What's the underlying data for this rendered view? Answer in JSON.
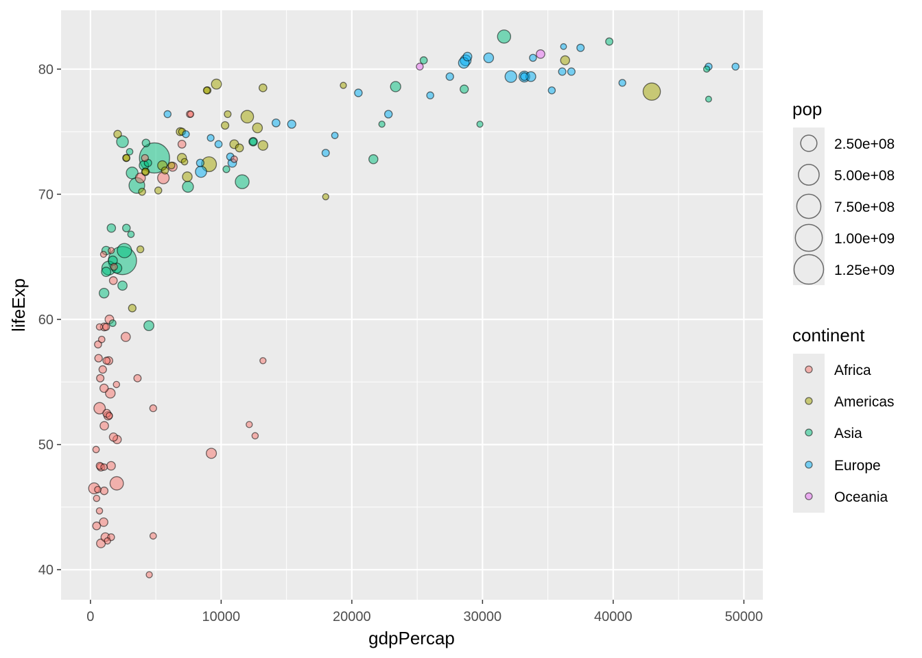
{
  "chart_data": {
    "type": "scatter",
    "title": "",
    "xlabel": "gdpPercap",
    "ylabel": "lifeExp",
    "xlim": [
      -2250,
      51450
    ],
    "ylim": [
      37.6,
      84.7
    ],
    "xticks": [
      0,
      10000,
      20000,
      30000,
      40000,
      50000
    ],
    "xtick_labels": [
      "0",
      "10000",
      "20000",
      "30000",
      "40000",
      "50000"
    ],
    "yticks": [
      40,
      50,
      60,
      70,
      80
    ],
    "ytick_labels": [
      "40",
      "50",
      "60",
      "70",
      "80"
    ],
    "grid": true,
    "colors": {
      "Africa": "#F8766D",
      "Americas": "#A3A500",
      "Asia": "#00BF7D",
      "Europe": "#00B0F6",
      "Oceania": "#E76BF3",
      "panel": "#EBEBEB",
      "grid": "#FFFFFF"
    },
    "size_legend": {
      "title": "pop",
      "values": [
        250000000,
        500000000,
        750000000,
        1000000000,
        1250000000
      ],
      "labels": [
        "2.50e+08",
        "5.00e+08",
        "7.50e+08",
        "1.00e+09",
        "1.25e+09"
      ]
    },
    "color_legend": {
      "title": "continent",
      "entries": [
        "Africa",
        "Americas",
        "Asia",
        "Europe",
        "Oceania"
      ]
    },
    "legend_position": "right",
    "points": [
      {
        "x": 4900,
        "y": 72.9,
        "pop": 1318000000,
        "continent": "Asia"
      },
      {
        "x": 2450,
        "y": 64.7,
        "pop": 1110000000,
        "continent": "Asia"
      },
      {
        "x": 42950,
        "y": 78.2,
        "pop": 301000000,
        "continent": "Americas"
      },
      {
        "x": 3550,
        "y": 70.7,
        "pop": 224000000,
        "continent": "Asia"
      },
      {
        "x": 9070,
        "y": 72.4,
        "pop": 190000000,
        "continent": "Americas"
      },
      {
        "x": 2600,
        "y": 65.5,
        "pop": 169000000,
        "continent": "Asia"
      },
      {
        "x": 1400,
        "y": 64.1,
        "pop": 150000000,
        "continent": "Asia"
      },
      {
        "x": 2010,
        "y": 46.9,
        "pop": 135000000,
        "continent": "Africa"
      },
      {
        "x": 31650,
        "y": 82.6,
        "pop": 127000000,
        "continent": "Asia"
      },
      {
        "x": 12000,
        "y": 76.2,
        "pop": 108000000,
        "continent": "Americas"
      },
      {
        "x": 9250,
        "y": 49.3,
        "pop": 47000000,
        "continent": "Africa"
      },
      {
        "x": 3190,
        "y": 71.7,
        "pop": 85000000,
        "continent": "Asia"
      },
      {
        "x": 32170,
        "y": 79.4,
        "pop": 82000000,
        "continent": "Europe"
      },
      {
        "x": 5580,
        "y": 71.3,
        "pop": 80000000,
        "continent": "Africa"
      },
      {
        "x": 2450,
        "y": 74.2,
        "pop": 85000000,
        "continent": "Asia"
      },
      {
        "x": 8460,
        "y": 71.8,
        "pop": 71000000,
        "continent": "Europe"
      },
      {
        "x": 28710,
        "y": 80.7,
        "pop": 61000000,
        "continent": "Europe"
      },
      {
        "x": 33200,
        "y": 79.4,
        "pop": 60000000,
        "continent": "Europe"
      },
      {
        "x": 28570,
        "y": 80.5,
        "pop": 58000000,
        "continent": "Europe"
      },
      {
        "x": 7460,
        "y": 70.6,
        "pop": 65000000,
        "continent": "Asia"
      },
      {
        "x": 2010,
        "y": 64.1,
        "pop": 47000000,
        "continent": "Asia"
      },
      {
        "x": 700,
        "y": 52.9,
        "pop": 76000000,
        "continent": "Africa"
      },
      {
        "x": 280,
        "y": 46.5,
        "pop": 65000000,
        "continent": "Africa"
      },
      {
        "x": 23350,
        "y": 78.6,
        "pop": 49000000,
        "continent": "Asia"
      },
      {
        "x": 9640,
        "y": 78.8,
        "pop": 44000000,
        "continent": "Americas"
      },
      {
        "x": 30470,
        "y": 80.9,
        "pop": 40000000,
        "continent": "Europe"
      },
      {
        "x": 1520,
        "y": 54.1,
        "pop": 38000000,
        "continent": "Africa"
      },
      {
        "x": 12780,
        "y": 75.3,
        "pop": 40000000,
        "continent": "Americas"
      },
      {
        "x": 11610,
        "y": 71.0,
        "pop": 150000000,
        "continent": "Asia"
      },
      {
        "x": 33700,
        "y": 79.4,
        "pop": 40000000,
        "continent": "Europe"
      },
      {
        "x": 13200,
        "y": 73.9,
        "pop": 38000000,
        "continent": "Americas"
      },
      {
        "x": 7410,
        "y": 71.4,
        "pop": 38000000,
        "continent": "Americas"
      },
      {
        "x": 4470,
        "y": 59.5,
        "pop": 43000000,
        "continent": "Asia"
      },
      {
        "x": 3820,
        "y": 71.3,
        "pop": 43000000,
        "continent": "Africa"
      },
      {
        "x": 1040,
        "y": 62.1,
        "pop": 38000000,
        "continent": "Asia"
      },
      {
        "x": 4090,
        "y": 72.3,
        "pop": 33000000,
        "continent": "Asia"
      },
      {
        "x": 1200,
        "y": 63.8,
        "pop": 32000000,
        "continent": "Asia"
      },
      {
        "x": 5500,
        "y": 72.3,
        "pop": 33000000,
        "continent": "Americas"
      },
      {
        "x": 2700,
        "y": 58.6,
        "pop": 29000000,
        "continent": "Africa"
      },
      {
        "x": 2450,
        "y": 62.7,
        "pop": 30000000,
        "continent": "Asia"
      },
      {
        "x": 1580,
        "y": 48.3,
        "pop": 20000000,
        "continent": "Africa"
      },
      {
        "x": 1450,
        "y": 60.0,
        "pop": 22000000,
        "continent": "Africa"
      },
      {
        "x": 36320,
        "y": 80.7,
        "pop": 27000000,
        "continent": "Americas"
      },
      {
        "x": 21650,
        "y": 72.8,
        "pop": 27000000,
        "continent": "Asia"
      },
      {
        "x": 6290,
        "y": 72.2,
        "pop": 26000000,
        "continent": "Africa"
      },
      {
        "x": 11000,
        "y": 74.0,
        "pop": 23000000,
        "continent": "Americas"
      },
      {
        "x": 1710,
        "y": 64.7,
        "pop": 28000000,
        "continent": "Asia"
      },
      {
        "x": 7000,
        "y": 72.9,
        "pop": 28000000,
        "continent": "Americas"
      },
      {
        "x": 1140,
        "y": 42.6,
        "pop": 22000000,
        "continent": "Africa"
      },
      {
        "x": 800,
        "y": 42.1,
        "pop": 23000000,
        "continent": "Africa"
      },
      {
        "x": 34440,
        "y": 81.2,
        "pop": 20000000,
        "continent": "Oceania"
      },
      {
        "x": 28850,
        "y": 81.0,
        "pop": 22000000,
        "continent": "Europe"
      },
      {
        "x": 1200,
        "y": 65.5,
        "pop": 20000000,
        "continent": "Asia"
      },
      {
        "x": 15400,
        "y": 75.6,
        "pop": 16000000,
        "continent": "Europe"
      },
      {
        "x": 12450,
        "y": 74.2,
        "pop": 20000000,
        "continent": "Asia"
      },
      {
        "x": 10850,
        "y": 72.5,
        "pop": 20000000,
        "continent": "Europe"
      },
      {
        "x": 1600,
        "y": 67.3,
        "pop": 18000000,
        "continent": "Asia"
      },
      {
        "x": 2750,
        "y": 67.3,
        "pop": 10000000,
        "continent": "Asia"
      },
      {
        "x": 1010,
        "y": 43.8,
        "pop": 19000000,
        "continent": "Africa"
      },
      {
        "x": 28600,
        "y": 78.4,
        "pop": 16000000,
        "continent": "Asia"
      },
      {
        "x": 1060,
        "y": 51.5,
        "pop": 19000000,
        "continent": "Africa"
      },
      {
        "x": 1350,
        "y": 52.3,
        "pop": 18000000,
        "continent": "Africa"
      },
      {
        "x": 1760,
        "y": 50.6,
        "pop": 16000000,
        "continent": "Africa"
      },
      {
        "x": 2040,
        "y": 50.4,
        "pop": 18000000,
        "continent": "Africa"
      },
      {
        "x": 1040,
        "y": 54.5,
        "pop": 17000000,
        "continent": "Africa"
      },
      {
        "x": 1400,
        "y": 56.7,
        "pop": 14000000,
        "continent": "Africa"
      },
      {
        "x": 14200,
        "y": 75.7,
        "pop": 12000000,
        "continent": "Europe"
      },
      {
        "x": 6870,
        "y": 75.0,
        "pop": 13000000,
        "continent": "Americas"
      },
      {
        "x": 11400,
        "y": 73.7,
        "pop": 13000000,
        "continent": "Americas"
      },
      {
        "x": 1060,
        "y": 59.4,
        "pop": 12000000,
        "continent": "Africa"
      },
      {
        "x": 800,
        "y": 48.2,
        "pop": 12000000,
        "continent": "Africa"
      },
      {
        "x": 1250,
        "y": 52.5,
        "pop": 12000000,
        "continent": "Africa"
      },
      {
        "x": 1750,
        "y": 63.1,
        "pop": 12000000,
        "continent": "Africa"
      },
      {
        "x": 7000,
        "y": 74.0,
        "pop": 12000000,
        "continent": "Africa"
      },
      {
        "x": 470,
        "y": 43.5,
        "pop": 12000000,
        "continent": "Africa"
      },
      {
        "x": 22800,
        "y": 76.4,
        "pop": 10000000,
        "continent": "Europe"
      },
      {
        "x": 33200,
        "y": 79.4,
        "pop": 10000000,
        "continent": "Europe"
      },
      {
        "x": 2080,
        "y": 74.8,
        "pop": 10000000,
        "continent": "Americas"
      },
      {
        "x": 4250,
        "y": 74.1,
        "pop": 10000000,
        "continent": "Asia"
      },
      {
        "x": 20500,
        "y": 78.1,
        "pop": 10000000,
        "continent": "Europe"
      },
      {
        "x": 1050,
        "y": 46.3,
        "pop": 10000000,
        "continent": "Africa"
      },
      {
        "x": 3200,
        "y": 60.9,
        "pop": 9000000,
        "continent": "Americas"
      },
      {
        "x": 27500,
        "y": 79.4,
        "pop": 9000000,
        "continent": "Europe"
      },
      {
        "x": 8400,
        "y": 72.5,
        "pop": 9000000,
        "continent": "Europe"
      },
      {
        "x": 620,
        "y": 56.9,
        "pop": 9000000,
        "continent": "Africa"
      },
      {
        "x": 13200,
        "y": 78.5,
        "pop": 11000000,
        "continent": "Americas"
      },
      {
        "x": 4210,
        "y": 71.8,
        "pop": 10000000,
        "continent": "Americas"
      },
      {
        "x": 750,
        "y": 55.3,
        "pop": 8000000,
        "continent": "Africa"
      },
      {
        "x": 10300,
        "y": 75.5,
        "pop": 9000000,
        "continent": "Americas"
      },
      {
        "x": 36100,
        "y": 79.8,
        "pop": 8000000,
        "continent": "Europe"
      },
      {
        "x": 37500,
        "y": 81.7,
        "pop": 7500000,
        "continent": "Europe"
      },
      {
        "x": 39700,
        "y": 82.2,
        "pop": 7000000,
        "continent": "Asia"
      },
      {
        "x": 36800,
        "y": 79.8,
        "pop": 8000000,
        "continent": "Europe"
      },
      {
        "x": 10700,
        "y": 73.0,
        "pop": 7000000,
        "continent": "Europe"
      },
      {
        "x": 940,
        "y": 56.0,
        "pop": 9000000,
        "continent": "Africa"
      },
      {
        "x": 1230,
        "y": 56.7,
        "pop": 6000000,
        "continent": "Africa"
      },
      {
        "x": 12450,
        "y": 74.2,
        "pop": 7000000,
        "continent": "Asia"
      },
      {
        "x": 9800,
        "y": 74.0,
        "pop": 6000000,
        "continent": "Europe"
      },
      {
        "x": 3600,
        "y": 55.3,
        "pop": 7000000,
        "continent": "Africa"
      },
      {
        "x": 4400,
        "y": 72.5,
        "pop": 8000000,
        "continent": "Asia"
      },
      {
        "x": 8950,
        "y": 78.3,
        "pop": 6000000,
        "continent": "Americas"
      },
      {
        "x": 18000,
        "y": 73.3,
        "pop": 7000000,
        "continent": "Europe"
      },
      {
        "x": 35300,
        "y": 78.3,
        "pop": 5000000,
        "continent": "Europe"
      },
      {
        "x": 33860,
        "y": 80.9,
        "pop": 5000000,
        "continent": "Europe"
      },
      {
        "x": 47300,
        "y": 80.2,
        "pop": 4600000,
        "continent": "Europe"
      },
      {
        "x": 49360,
        "y": 80.2,
        "pop": 4600000,
        "continent": "Europe"
      },
      {
        "x": 25200,
        "y": 80.2,
        "pop": 4100000,
        "continent": "Oceania"
      },
      {
        "x": 40700,
        "y": 78.9,
        "pop": 4100000,
        "continent": "Europe"
      },
      {
        "x": 5900,
        "y": 76.4,
        "pop": 5000000,
        "continent": "Europe"
      },
      {
        "x": 7300,
        "y": 74.8,
        "pop": 4500000,
        "continent": "Europe"
      },
      {
        "x": 3950,
        "y": 70.2,
        "pop": 5000000,
        "continent": "Americas"
      },
      {
        "x": 580,
        "y": 58.0,
        "pop": 5500000,
        "continent": "Africa"
      },
      {
        "x": 710,
        "y": 48.3,
        "pop": 5000000,
        "continent": "Africa"
      },
      {
        "x": 4800,
        "y": 52.9,
        "pop": 4000000,
        "continent": "Africa"
      },
      {
        "x": 4170,
        "y": 72.9,
        "pop": 4000000,
        "continent": "Africa"
      },
      {
        "x": 1580,
        "y": 42.6,
        "pop": 4000000,
        "continent": "Africa"
      },
      {
        "x": 2740,
        "y": 72.9,
        "pop": 6000000,
        "continent": "Americas"
      },
      {
        "x": 5700,
        "y": 71.9,
        "pop": 5000000,
        "continent": "Americas"
      },
      {
        "x": 5190,
        "y": 70.3,
        "pop": 5000000,
        "continent": "Americas"
      },
      {
        "x": 7010,
        "y": 75.0,
        "pop": 5000000,
        "continent": "Americas"
      },
      {
        "x": 1200,
        "y": 59.4,
        "pop": 4000000,
        "continent": "Africa"
      },
      {
        "x": 1800,
        "y": 64.2,
        "pop": 4000000,
        "continent": "Africa"
      },
      {
        "x": 3820,
        "y": 65.6,
        "pop": 4000000,
        "continent": "Americas"
      },
      {
        "x": 6200,
        "y": 72.3,
        "pop": 3500000,
        "continent": "Americas"
      },
      {
        "x": 26000,
        "y": 77.9,
        "pop": 5000000,
        "continent": "Europe"
      },
      {
        "x": 7600,
        "y": 76.4,
        "pop": 3500000,
        "continent": "Africa"
      },
      {
        "x": 9200,
        "y": 74.5,
        "pop": 3500000,
        "continent": "Europe"
      },
      {
        "x": 10400,
        "y": 72.0,
        "pop": 3500000,
        "continent": "Asia"
      },
      {
        "x": 10500,
        "y": 76.4,
        "pop": 3500000,
        "continent": "Americas"
      },
      {
        "x": 8900,
        "y": 78.3,
        "pop": 3500000,
        "continent": "Americas"
      },
      {
        "x": 25500,
        "y": 80.7,
        "pop": 6000000,
        "continent": "Asia"
      },
      {
        "x": 2750,
        "y": 72.9,
        "pop": 3000000,
        "continent": "Americas"
      },
      {
        "x": 1700,
        "y": 59.7,
        "pop": 3000000,
        "continent": "Asia"
      },
      {
        "x": 18700,
        "y": 74.7,
        "pop": 2000000,
        "continent": "Europe"
      },
      {
        "x": 19350,
        "y": 78.7,
        "pop": 1000000,
        "continent": "Americas"
      },
      {
        "x": 22300,
        "y": 75.6,
        "pop": 1000000,
        "continent": "Asia"
      },
      {
        "x": 29800,
        "y": 75.6,
        "pop": 800000,
        "continent": "Asia"
      },
      {
        "x": 36200,
        "y": 81.8,
        "pop": 300000,
        "continent": "Europe"
      },
      {
        "x": 47150,
        "y": 80.0,
        "pop": 1000000,
        "continent": "Asia"
      },
      {
        "x": 47300,
        "y": 77.6,
        "pop": 500000,
        "continent": "Asia"
      },
      {
        "x": 18000,
        "y": 69.8,
        "pop": 1000000,
        "continent": "Americas"
      },
      {
        "x": 12600,
        "y": 50.7,
        "pop": 1500000,
        "continent": "Africa"
      },
      {
        "x": 12150,
        "y": 51.6,
        "pop": 1000000,
        "continent": "Africa"
      },
      {
        "x": 13200,
        "y": 56.7,
        "pop": 1000000,
        "continent": "Africa"
      },
      {
        "x": 1990,
        "y": 54.8,
        "pop": 1500000,
        "continent": "Africa"
      },
      {
        "x": 4500,
        "y": 39.6,
        "pop": 1000000,
        "continent": "Africa"
      },
      {
        "x": 4800,
        "y": 42.7,
        "pop": 2000000,
        "continent": "Africa"
      },
      {
        "x": 1300,
        "y": 42.3,
        "pop": 1500000,
        "continent": "Africa"
      },
      {
        "x": 690,
        "y": 44.7,
        "pop": 1500000,
        "continent": "Africa"
      },
      {
        "x": 470,
        "y": 45.7,
        "pop": 1500000,
        "continent": "Africa"
      },
      {
        "x": 430,
        "y": 49.6,
        "pop": 2000000,
        "continent": "Africa"
      },
      {
        "x": 860,
        "y": 58.4,
        "pop": 2000000,
        "continent": "Africa"
      },
      {
        "x": 1590,
        "y": 65.5,
        "pop": 800000,
        "continent": "Africa"
      },
      {
        "x": 1000,
        "y": 65.2,
        "pop": 800000,
        "continent": "Africa"
      },
      {
        "x": 690,
        "y": 59.4,
        "pop": 1500000,
        "continent": "Africa"
      },
      {
        "x": 7670,
        "y": 76.4,
        "pop": 1200000,
        "continent": "Africa"
      },
      {
        "x": 11000,
        "y": 72.8,
        "pop": 2000000,
        "continent": "Africa"
      },
      {
        "x": 1040,
        "y": 48.2,
        "pop": 2000000,
        "continent": "Africa"
      },
      {
        "x": 560,
        "y": 46.4,
        "pop": 2000000,
        "continent": "Africa"
      },
      {
        "x": 3100,
        "y": 66.8,
        "pop": 2000000,
        "continent": "Asia"
      },
      {
        "x": 3000,
        "y": 73.4,
        "pop": 2000000,
        "continent": "Asia"
      },
      {
        "x": 7200,
        "y": 72.6,
        "pop": 2000000,
        "continent": "Americas"
      },
      {
        "x": 1440,
        "y": 52.3,
        "pop": 2000000,
        "continent": "Africa"
      },
      {
        "x": 4200,
        "y": 71.8,
        "pop": 3000000,
        "continent": "Americas"
      }
    ]
  }
}
